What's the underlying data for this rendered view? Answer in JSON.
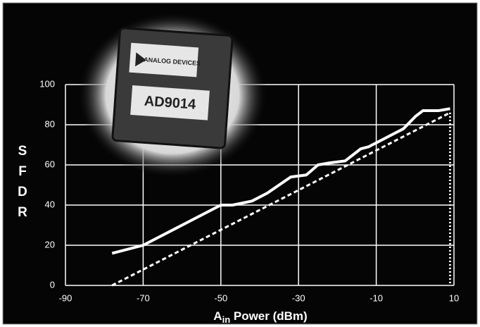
{
  "chart_data": {
    "type": "line",
    "y_label": [
      "S",
      "F",
      "D",
      "R"
    ],
    "x_label": {
      "base": "A",
      "subscript": "in",
      "rest": " Power (dBm)"
    },
    "annotations": [
      "ANALOG DEVICES",
      "AD9014"
    ],
    "xlim": [
      -90,
      10
    ],
    "ylim": [
      0,
      100
    ],
    "xticks": [
      -90,
      -70,
      -50,
      -30,
      -10,
      10
    ],
    "yticks": [
      0,
      20,
      40,
      60,
      80,
      100
    ],
    "grid": true,
    "series": [
      {
        "color": "#ffffff",
        "style": "solid",
        "x": [
          -78,
          -70,
          -60,
          -50,
          -47,
          -42,
          -38,
          -32,
          -28,
          -25,
          -22,
          -18,
          -14,
          -12,
          -6,
          -3,
          0,
          2,
          6,
          9
        ],
        "values": [
          16,
          20,
          30,
          40,
          40,
          42,
          46,
          54,
          55,
          60,
          61,
          62,
          68,
          69,
          75,
          78,
          84,
          87,
          87,
          88
        ]
      },
      {
        "color": "#ffffff",
        "style": "dashed",
        "x": [
          -78,
          9
        ],
        "values": [
          0,
          86
        ]
      },
      {
        "color": "#ffffff",
        "style": "dotted",
        "x": [
          9,
          9
        ],
        "values": [
          86,
          0
        ]
      }
    ]
  }
}
